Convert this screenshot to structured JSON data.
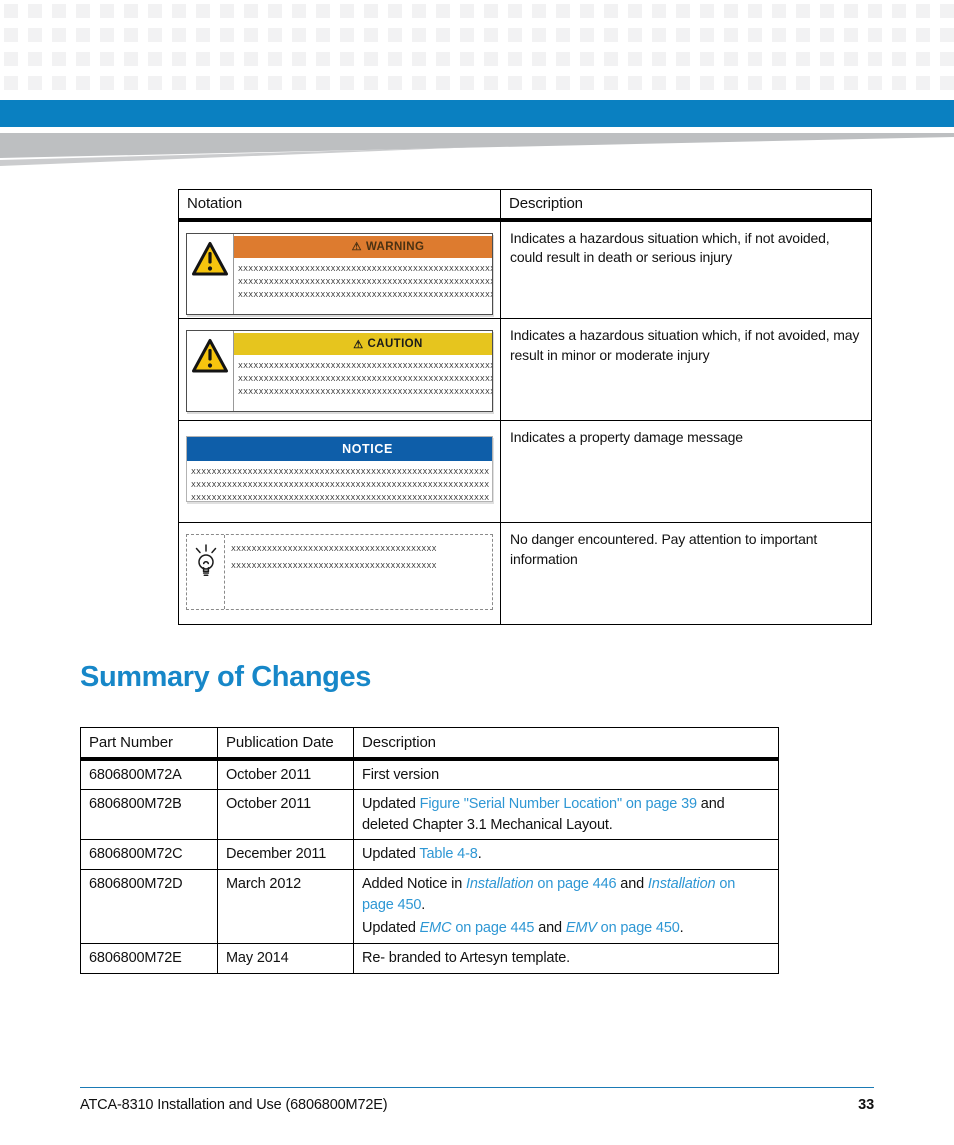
{
  "page": {
    "footer_doc_title": "ATCA-8310 Installation and Use (6806800M72E)",
    "footer_page_number": "33"
  },
  "colors": {
    "header_bar_blue": "#0a80c1",
    "swoosh_gray": "#bdbfc1",
    "heading_blue": "#1787c8",
    "link_blue": "#2e97d4",
    "warning_orange": "#dd7b2f",
    "caution_yellow": "#e6c51e",
    "notice_blue": "#0e5ea9",
    "warning_triangle_yellow": "#f6c40e"
  },
  "icons": {
    "warning_triangle": "warning-triangle-icon",
    "caution_triangle": "warning-triangle-icon",
    "tip_bulb": "light-bulb-icon",
    "banner_glyph": "⚠"
  },
  "section_title": "Summary of Changes",
  "notation_table": {
    "col_notation": "Notation",
    "col_description": "Description",
    "rows": [
      {
        "sign": "warning",
        "banner_glyph": "⚠",
        "banner_label": "WARNING",
        "placeholder_lines": [
          "XXXXXXXXXXXXXXXXXXXXXXXXXXXXXXXXXXXXXXXXXXXXXXXXXXXXX",
          "XXXXXXXXXXXXXXXXXXXXXXXXXXXXXXXXXXXXXXXXXXXXXXXXXXXXX",
          "XXXXXXXXXXXXXXXXXXXXXXXXXXXXXXXXXXXXXXXXXXXXXXXXXXXXX"
        ],
        "description": "Indicates a hazardous situation which, if not avoided, could result in death or serious injury"
      },
      {
        "sign": "caution",
        "banner_glyph": "⚠",
        "banner_label": "CAUTION",
        "placeholder_lines": [
          "XXXXXXXXXXXXXXXXXXXXXXXXXXXXXXXXXXXXXXXXXXXXXXXXXXXXX",
          "XXXXXXXXXXXXXXXXXXXXXXXXXXXXXXXXXXXXXXXXXXXXXXXXXXXXX",
          "XXXXXXXXXXXXXXXXXXXXXXXXXXXXXXXXXXXXXXXXXXXXXXXXXXXXX"
        ],
        "description": "Indicates a hazardous situation which, if not avoided, may result in minor or moderate injury"
      },
      {
        "sign": "notice",
        "banner_label": "NOTICE",
        "placeholder_lines": [
          "XXXXXXXXXXXXXXXXXXXXXXXXXXXXXXXXXXXXXXXXXXXXXXXXXXXXXXXXXX",
          "XXXXXXXXXXXXXXXXXXXXXXXXXXXXXXXXXXXXXXXXXXXXXXXXXXXXXXXXXX",
          "XXXXXXXXXXXXXXXXXXXXXXXXXXXXXXXXXXXXXXXXXXXXXXXXXXXXXXXXXX"
        ],
        "description": "Indicates a property damage message"
      },
      {
        "sign": "tip",
        "placeholder_lines": [
          "XXXXXXXXXXXXXXXXXXXXXXXXXXXXXXXXXXXXXXXX",
          "XXXXXXXXXXXXXXXXXXXXXXXXXXXXXXXXXXXXXXXX"
        ],
        "description": "No danger encountered. Pay attention to important information"
      }
    ]
  },
  "changes_table": {
    "col_part": "Part Number",
    "col_date": "Publication Date",
    "col_desc": "Description",
    "rows": [
      {
        "part": "6806800M72A",
        "date": "October 2011",
        "desc": [
          [
            {
              "t": "First version",
              "s": "p"
            }
          ]
        ]
      },
      {
        "part": "6806800M72B",
        "date": "October 2011",
        "desc": [
          [
            {
              "t": "Updated ",
              "s": "p"
            },
            {
              "t": "Figure \"Serial Number Location\" on page 39",
              "s": "l"
            },
            {
              "t": " and deleted Chapter 3.1 Mechanical Layout.",
              "s": "p"
            }
          ]
        ]
      },
      {
        "part": "6806800M72C",
        "date": "December 2011",
        "desc": [
          [
            {
              "t": "Updated ",
              "s": "p"
            },
            {
              "t": "Table 4-8",
              "s": "l"
            },
            {
              "t": ".",
              "s": "p"
            }
          ]
        ]
      },
      {
        "part": "6806800M72D",
        "date": "March 2012",
        "desc": [
          [
            {
              "t": "Added Notice in ",
              "s": "p"
            },
            {
              "t": "Installation",
              "s": "li"
            },
            {
              "t": " on page 446",
              "s": "l"
            },
            {
              "t": " and ",
              "s": "p"
            },
            {
              "t": "Installation",
              "s": "li"
            },
            {
              "t": " on page 450",
              "s": "l"
            },
            {
              "t": ".",
              "s": "p"
            }
          ],
          [
            {
              "t": "Updated ",
              "s": "p"
            },
            {
              "t": "EMC",
              "s": "li"
            },
            {
              "t": " on page 445",
              "s": "l"
            },
            {
              "t": " and ",
              "s": "p"
            },
            {
              "t": "EMV",
              "s": "li"
            },
            {
              "t": " on page 450",
              "s": "l"
            },
            {
              "t": ".",
              "s": "p"
            }
          ]
        ]
      },
      {
        "part": "6806800M72E",
        "date": "May 2014",
        "desc": [
          [
            {
              "t": "Re- branded to Artesyn template.",
              "s": "p"
            }
          ]
        ]
      }
    ]
  }
}
